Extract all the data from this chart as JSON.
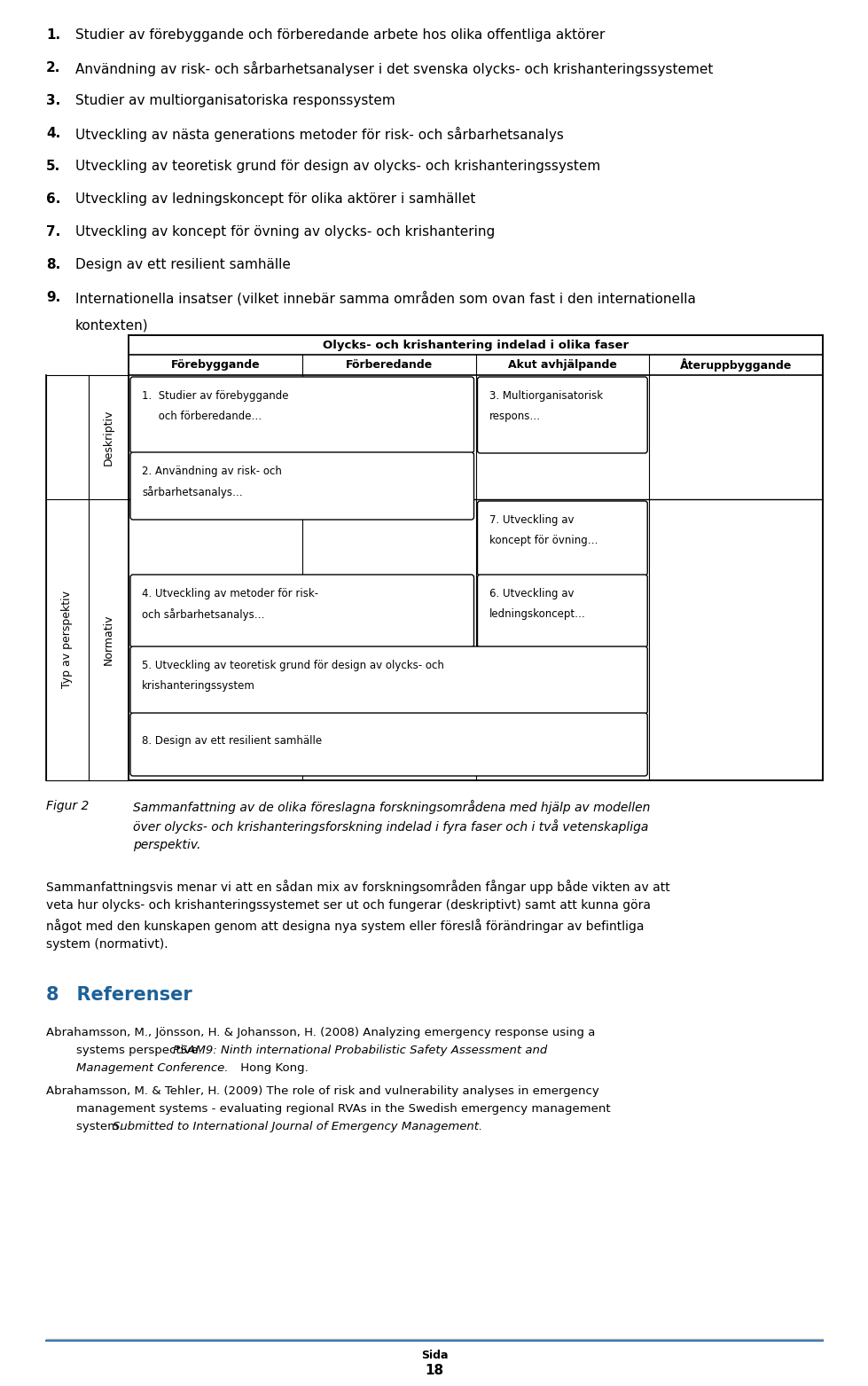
{
  "bg_color": "#ffffff",
  "text_color": "#000000",
  "blue_color": "#1e6197",
  "numbered_items": [
    "Studier av förebyggande och förberedande arbete hos olika offentliga aktörer",
    "Användning av risk- och sårbarhetsanalyser i det svenska olycks- och krishanteringssystemet",
    "Studier av multiorganisatoriska responssystem",
    "Utveckling av nästa generations metoder för risk- och sårbarhetsanalys",
    "Utveckling av teoretisk grund för design av olycks- och krishanteringssystem",
    "Utveckling av ledningskoncept för olika aktörer i samhället",
    "Utveckling av koncept för övning av olycks- och krishantering",
    "Design av ett resilient samhälle",
    "Internationella insatser (vilket innebär samma områden som ovan fast i den internationella kontexten)"
  ],
  "table_header": "Olycks- och krishantering indelad i olika faser",
  "col_headers": [
    "Förebyggande",
    "Förberedande",
    "Akut avhjälpande",
    "Återuppbyggande"
  ],
  "outer_row_label": "Typ av perspektiv",
  "inner_row_label_top": "Deskriptiv",
  "inner_row_label_bot": "Normativ",
  "figur_label": "Figur 2",
  "figur_text": "Sammanfattning av de olika föreslagna forskningsområdena med hjälp av modellen över olycks- och krishanteringsforskning indelad i fyra faser och i två vetenskapliga perspektiv.",
  "body_text_line1": "Sammanfattningsvis menar vi att en sådan mix av forskningsområden fångar upp både vikten av att",
  "body_text_line2": "veta hur olycks- och krishanteringssystemet ser ut och fungerar (deskriptivt) samt att kunna göra",
  "body_text_line3": "något med den kunskapen genom att designa nya system eller föreslå förändringar av befintliga",
  "body_text_line4": "system (normativt).",
  "section_num": "8",
  "section_title": "  Referenser",
  "ref1_line1": "Abrahamsson, M., Jönsson, H. & Johansson, H. (2008) Analyzing emergency response using a",
  "ref1_line2_normal": "        systems perspective. ",
  "ref1_line2_italic": "PSAM9: Ninth international Probabilistic Safety Assessment and",
  "ref1_line3_italic": "        Management Conference.",
  "ref1_line3_end": " Hong Kong.",
  "ref2_line1": "Abrahamsson, M. & Tehler, H. (2009) The role of risk and vulnerability analyses in emergency",
  "ref2_line2": "        management systems - evaluating regional RVAs in the Swedish emergency management",
  "ref2_line3_normal": "        system. ",
  "ref2_line3_italic": "Submitted to International Journal of Emergency Management.",
  "footer_sida": "Sida",
  "footer_num": "18"
}
